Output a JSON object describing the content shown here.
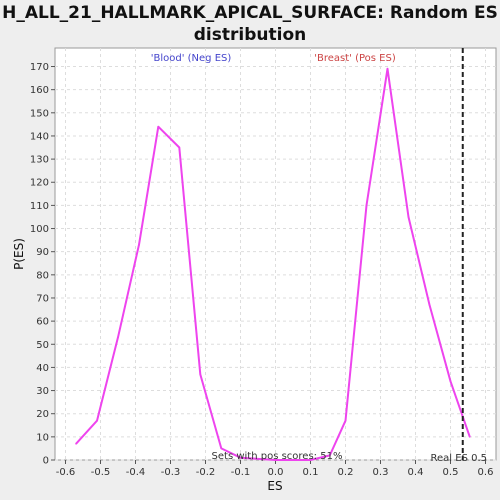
{
  "chart_data": {
    "type": "line",
    "title_lines": [
      "H_ALL_21_HALLMARK_APICAL_SURFACE: Random ES",
      "distribution"
    ],
    "xlabel": "ES",
    "ylabel": "P(ES)",
    "xlim": [
      -0.63,
      0.63
    ],
    "ylim": [
      0,
      178
    ],
    "xticks": [
      -0.6,
      -0.5,
      -0.4,
      -0.3,
      -0.2,
      -0.1,
      0.0,
      0.1,
      0.2,
      0.3,
      0.4,
      0.5,
      0.6
    ],
    "xtick_labels": [
      "-0.6",
      "-0.5",
      "-0.4",
      "-0.3",
      "-0.2",
      "-0.1",
      "0.0",
      "0.1",
      "0.2",
      "0.3",
      "0.4",
      "0.5",
      "0.6"
    ],
    "yticks": [
      0,
      10,
      20,
      30,
      40,
      50,
      60,
      70,
      80,
      90,
      100,
      110,
      120,
      130,
      140,
      150,
      160,
      170
    ],
    "ytick_labels": [
      "0",
      "10",
      "20",
      "30",
      "40",
      "50",
      "60",
      "70",
      "80",
      "90",
      "100",
      "110",
      "120",
      "130",
      "140",
      "150",
      "160",
      "170"
    ],
    "grid": true,
    "series": [
      {
        "color": "#ee44ee",
        "x": [
          -0.57,
          -0.51,
          -0.45,
          -0.39,
          -0.335,
          -0.275,
          -0.215,
          -0.155,
          -0.1,
          0.0,
          0.1,
          0.155,
          0.2,
          0.26,
          0.32,
          0.38,
          0.44,
          0.5,
          0.555
        ],
        "y": [
          7,
          17,
          53,
          93,
          144,
          135,
          37,
          5,
          1,
          0,
          0,
          2,
          17,
          110,
          169,
          105,
          67,
          34,
          10
        ]
      }
    ],
    "real_es": 0.535,
    "annotations": {
      "neg_label": "'Blood' (Neg ES)",
      "neg_color": "#4444cc",
      "pos_label": "'Breast' (Pos ES)",
      "pos_color": "#cc4444",
      "sets_text": "Sets with pos scores: 51%",
      "real_es_text": "Real ES 0.5"
    }
  }
}
